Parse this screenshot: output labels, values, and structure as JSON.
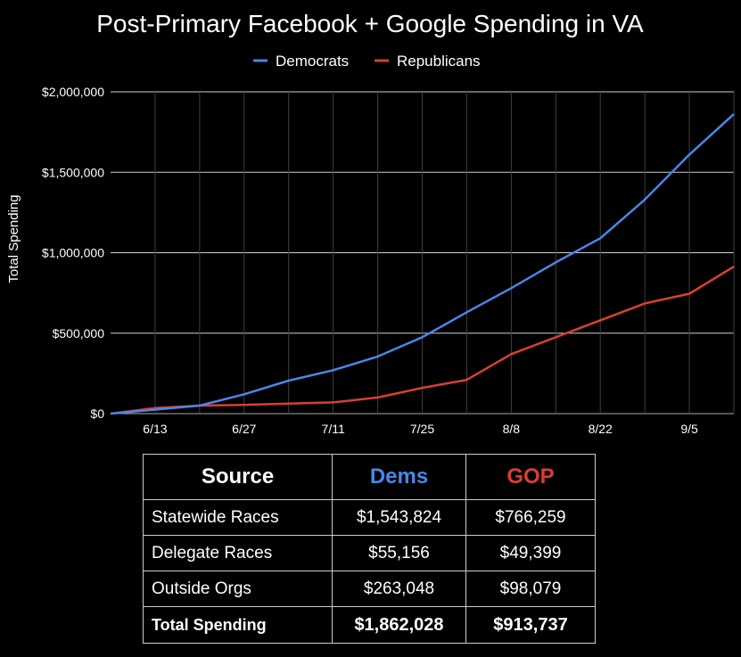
{
  "chart_data": {
    "type": "line",
    "title": "Post-Primary Facebook + Google Spending in VA",
    "ylabel": "Total Spending",
    "xlabel": "",
    "ylim": [
      0,
      2000000
    ],
    "y_ticks": [
      "$0",
      "$500,000",
      "$1,000,000",
      "$1,500,000",
      "$2,000,000"
    ],
    "y_tick_values": [
      0,
      500000,
      1000000,
      1500000,
      2000000
    ],
    "x_ticks": [
      "6/13",
      "6/27",
      "7/11",
      "7/25",
      "8/8",
      "8/22",
      "9/5"
    ],
    "x": [
      "6/9",
      "6/13",
      "6/20",
      "6/27",
      "7/4",
      "7/11",
      "7/18",
      "7/25",
      "8/1",
      "8/8",
      "8/15",
      "8/22",
      "8/29",
      "9/5",
      "9/12"
    ],
    "grid": true,
    "legend_position": "top",
    "series": [
      {
        "name": "Democrats",
        "color": "#4a86e8",
        "values": [
          0,
          25000,
          50000,
          120000,
          205000,
          270000,
          355000,
          475000,
          630000,
          780000,
          940000,
          1090000,
          1330000,
          1610000,
          1862028
        ]
      },
      {
        "name": "Republicans",
        "color": "#d93f30",
        "values": [
          0,
          35000,
          50000,
          55000,
          62000,
          70000,
          100000,
          160000,
          210000,
          370000,
          475000,
          580000,
          685000,
          745000,
          913737
        ]
      }
    ]
  },
  "table": {
    "headers": [
      "Source",
      "Dems",
      "GOP"
    ],
    "header_colors": [
      "#ffffff",
      "#4a86e8",
      "#d93f30"
    ],
    "rows": [
      [
        "Statewide Races",
        "$1,543,824",
        "$766,259"
      ],
      [
        "Delegate Races",
        "$55,156",
        "$49,399"
      ],
      [
        "Outside Orgs",
        "$263,048",
        "$98,079"
      ]
    ],
    "total": [
      "Total Spending",
      "$1,862,028",
      "$913,737"
    ]
  },
  "colors": {
    "background": "#000000",
    "text": "#ffffff",
    "grid": "#3f3f3f",
    "axis": "#aaaaaa"
  }
}
